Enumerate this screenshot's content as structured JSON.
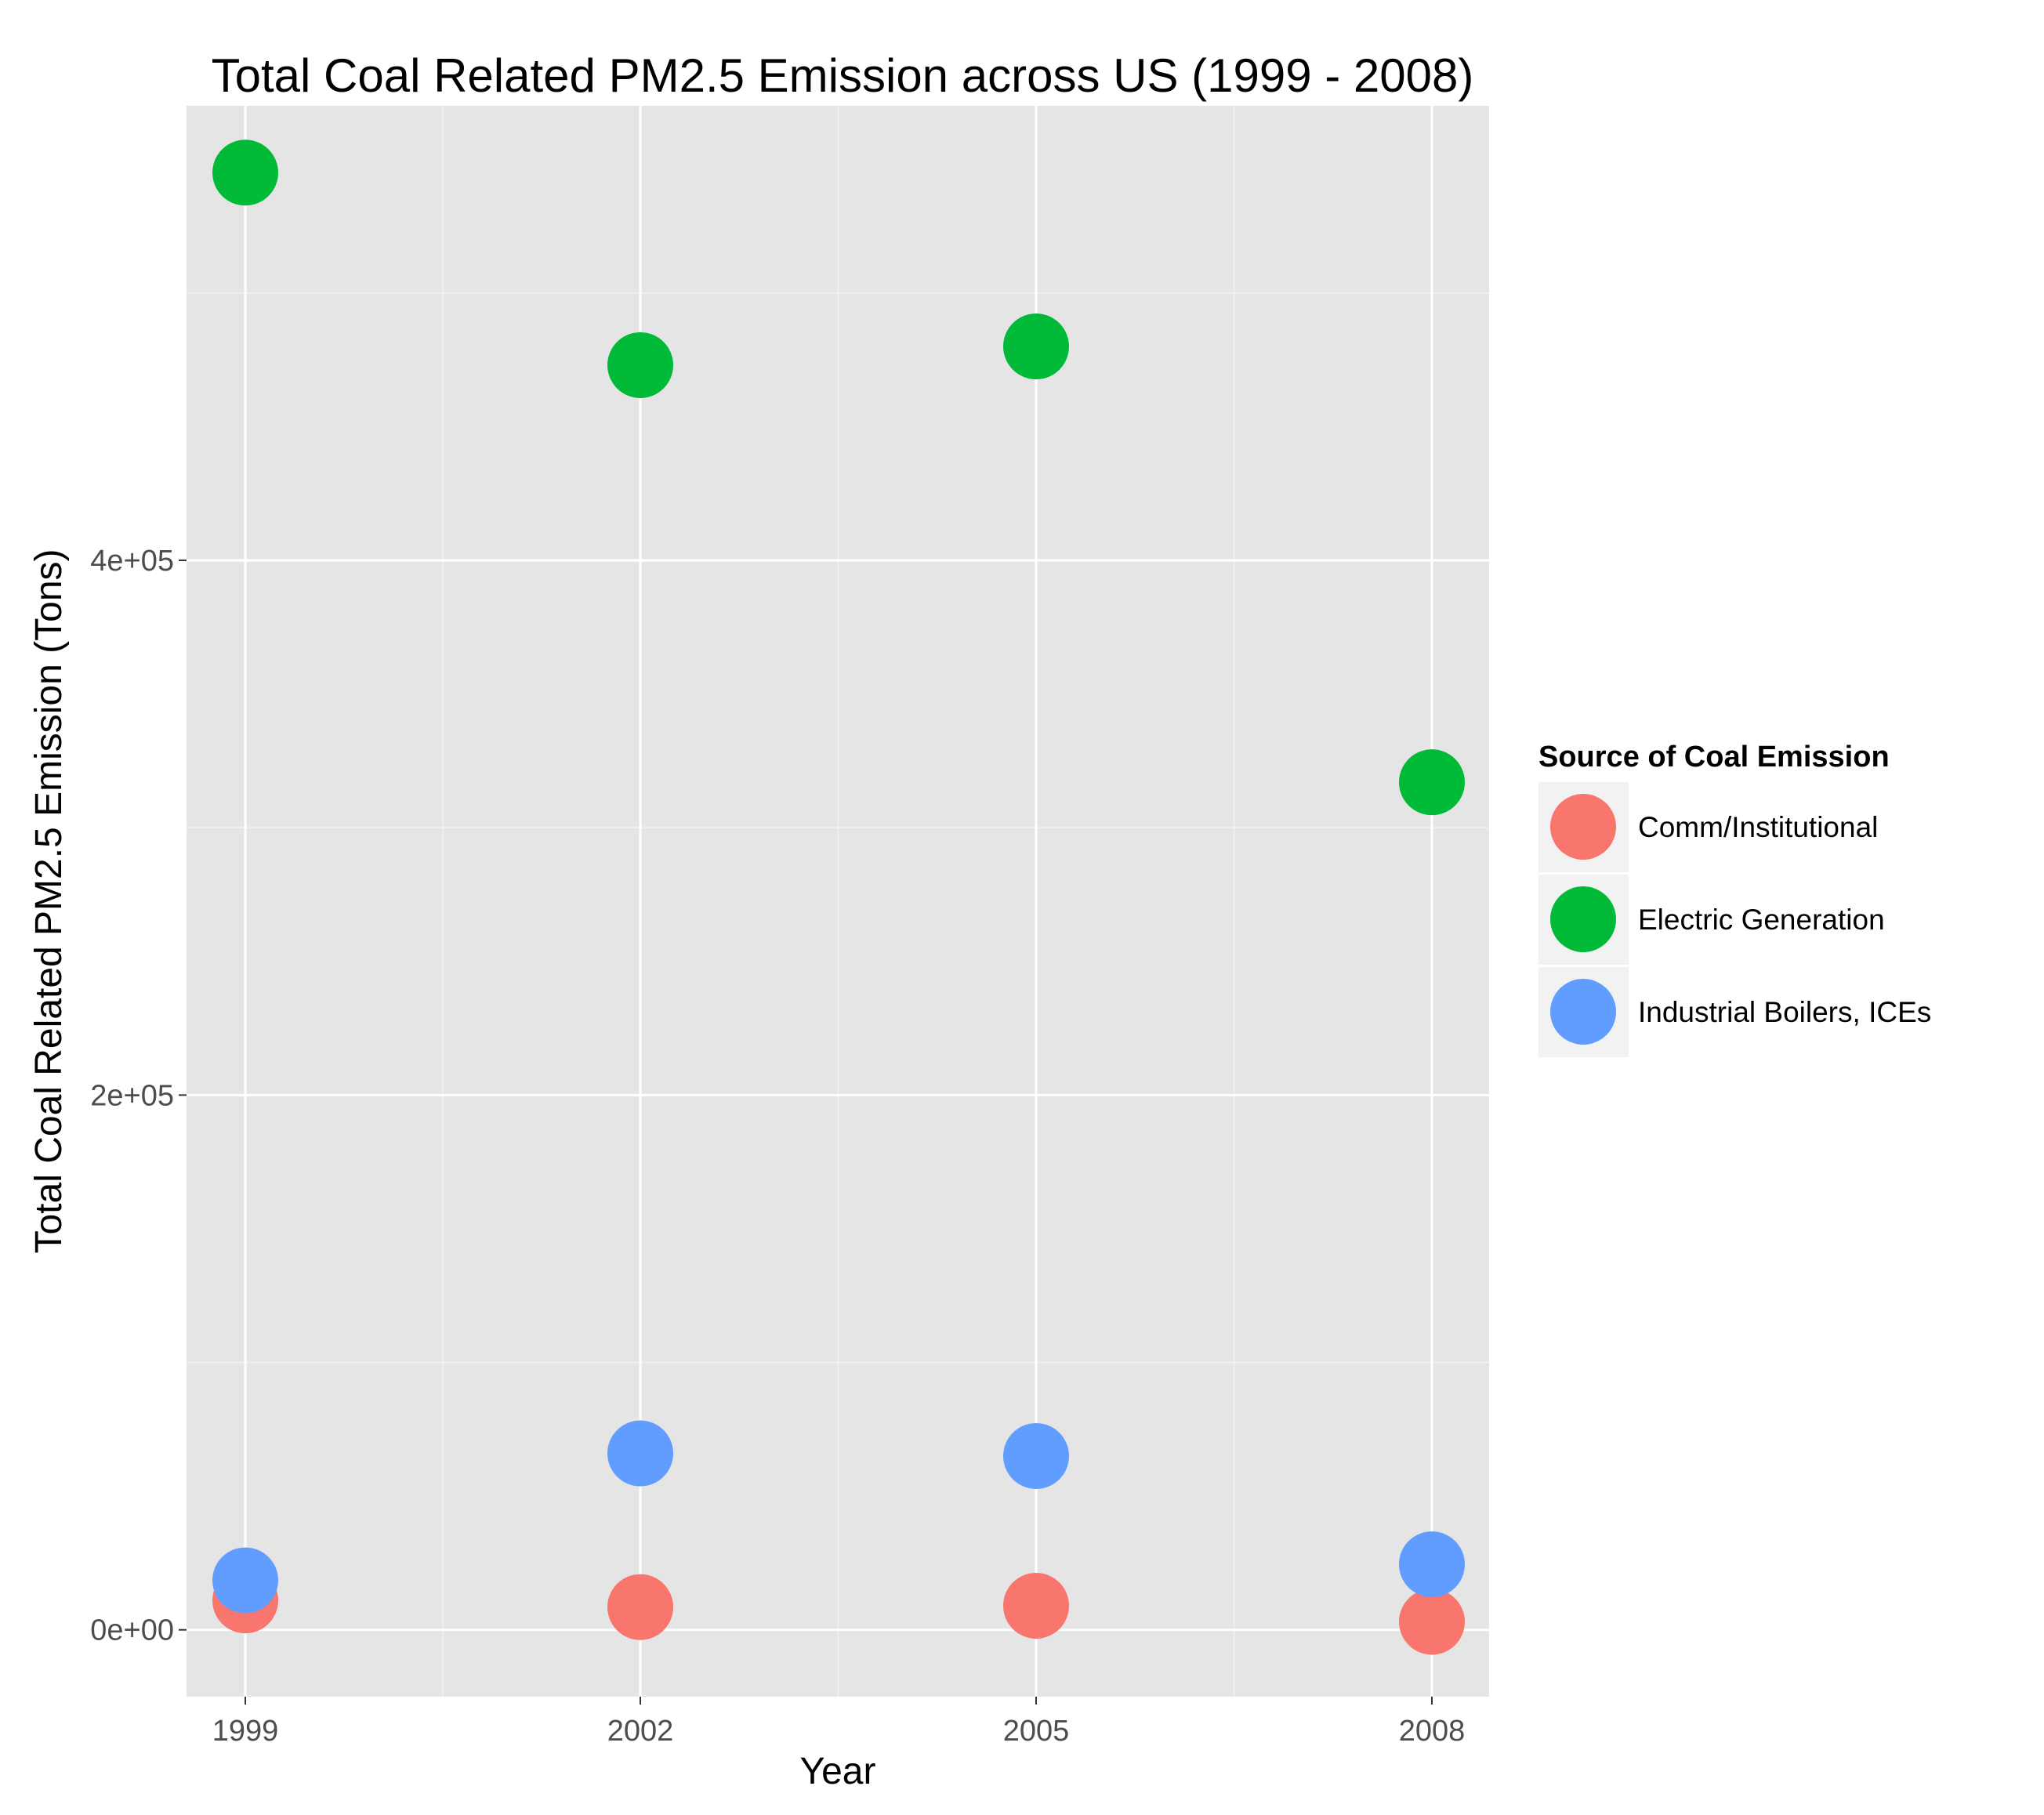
{
  "chart_data": {
    "type": "scatter",
    "title": "Total Coal Related PM2.5 Emission across US (1999 - 2008)",
    "xlabel": "Year",
    "ylabel": "Total Coal Related PM2.5 Emission (Tons)",
    "categories": [
      "1999",
      "2002",
      "2005",
      "2008"
    ],
    "y_ticks": [
      {
        "value": 0,
        "label": "0e+00"
      },
      {
        "value": 200000,
        "label": "2e+05"
      },
      {
        "value": 400000,
        "label": "4e+05"
      }
    ],
    "ylim": [
      -25000,
      570000
    ],
    "grid": true,
    "legend": {
      "title": "Source of Coal Emission",
      "position": "right"
    },
    "series": [
      {
        "name": "Comm/Institutional",
        "color": "#F8766D",
        "values": [
          11000,
          8500,
          9000,
          3000
        ]
      },
      {
        "name": "Electric Generation",
        "color": "#00BA38",
        "values": [
          545000,
          473000,
          480000,
          317000
        ]
      },
      {
        "name": "Industrial Boilers, ICEs",
        "color": "#619CFF",
        "values": [
          18500,
          66000,
          65000,
          24500
        ]
      }
    ]
  }
}
